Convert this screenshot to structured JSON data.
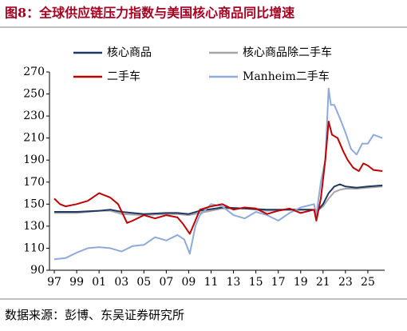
{
  "chart_data": {
    "type": "line",
    "title": "图8：全球供应链压力指数与美国核心商品同比增速",
    "source": "数据来源：彭博、东吴证券研究所",
    "xlim": [
      1996.57,
      2026.5
    ],
    "xticks": [
      {
        "value": 1997,
        "label": "97"
      },
      {
        "value": 1999,
        "label": "99"
      },
      {
        "value": 2001,
        "label": "01"
      },
      {
        "value": 2003,
        "label": "03"
      },
      {
        "value": 2005,
        "label": "05"
      },
      {
        "value": 2007,
        "label": "07"
      },
      {
        "value": 2009,
        "label": "09"
      },
      {
        "value": 2011,
        "label": "11"
      },
      {
        "value": 2013,
        "label": "13"
      },
      {
        "value": 2015,
        "label": "15"
      },
      {
        "value": 2017,
        "label": "17"
      },
      {
        "value": 2019,
        "label": "19"
      },
      {
        "value": 2021,
        "label": "21"
      },
      {
        "value": 2023,
        "label": "23"
      },
      {
        "value": 2025,
        "label": "25"
      }
    ],
    "ylim": [
      90,
      270
    ],
    "yticks": [
      90,
      110,
      130,
      150,
      170,
      190,
      210,
      230,
      250,
      270
    ],
    "series": [
      {
        "name": "核心商品",
        "color": "#1f3864",
        "x": [
          1997,
          1999,
          2001,
          2002,
          2003,
          2005,
          2007,
          2008,
          2009,
          2010,
          2012,
          2014,
          2016,
          2018,
          2020,
          2020.5,
          2021,
          2021.5,
          2022,
          2022.5,
          2023,
          2024,
          2025,
          2026.3
        ],
        "values": [
          143,
          143,
          144,
          145,
          143,
          141,
          142,
          142,
          141,
          144,
          147,
          146,
          145,
          145,
          145,
          144,
          150,
          160,
          166,
          168,
          166,
          165,
          166,
          167
        ]
      },
      {
        "name": "核心商品除二手车",
        "color": "#a6a6a6",
        "x": [
          1997,
          1999,
          2001,
          2002,
          2003,
          2005,
          2007,
          2008,
          2009,
          2010,
          2012,
          2014,
          2016,
          2018,
          2020,
          2020.5,
          2021,
          2021.5,
          2022,
          2022.5,
          2023,
          2024,
          2025,
          2026.3
        ],
        "values": [
          142,
          142,
          144,
          144,
          141,
          140,
          141,
          141,
          140,
          142,
          146,
          146,
          144,
          145,
          145,
          144,
          148,
          155,
          161,
          163,
          164,
          164,
          165,
          166
        ]
      },
      {
        "name": "二手车",
        "color": "#c00000",
        "x": [
          1997,
          1997.5,
          1998,
          1999,
          2000,
          2001,
          2002,
          2002.7,
          2003.5,
          2004,
          2005,
          2006,
          2007,
          2008,
          2008.5,
          2009.1,
          2009.6,
          2010,
          2011,
          2012,
          2013,
          2014,
          2015,
          2016,
          2017,
          2018,
          2019,
          2020.2,
          2020.4,
          2020.8,
          2021.2,
          2021.5,
          2021.8,
          2022.3,
          2022.8,
          2023.2,
          2023.7,
          2024.2,
          2024.6,
          2025,
          2025.5,
          2026.3
        ],
        "values": [
          155,
          150,
          148,
          150,
          153,
          160,
          156,
          150,
          133,
          135,
          140,
          137,
          140,
          138,
          132,
          123,
          135,
          145,
          148,
          150,
          145,
          147,
          146,
          141,
          144,
          146,
          142,
          145,
          135,
          155,
          190,
          225,
          213,
          210,
          198,
          190,
          183,
          180,
          187,
          185,
          181,
          180
        ]
      },
      {
        "name": "Manheim二手车",
        "color": "#8eaadb",
        "x": [
          1997,
          1998,
          1999,
          2000,
          2001,
          2002,
          2003,
          2004,
          2005,
          2006,
          2007,
          2008,
          2008.6,
          2009.1,
          2009.6,
          2010,
          2011,
          2012,
          2013,
          2014,
          2015,
          2016,
          2017,
          2018,
          2019,
          2020.2,
          2020.4,
          2020.8,
          2021.2,
          2021.5,
          2021.7,
          2022,
          2022.5,
          2023,
          2023.5,
          2024,
          2024.5,
          2025,
          2025.5,
          2026.3
        ],
        "values": [
          100,
          101,
          106,
          110,
          111,
          110,
          107,
          112,
          113,
          120,
          117,
          122,
          118,
          105,
          130,
          140,
          150,
          148,
          140,
          137,
          143,
          140,
          135,
          142,
          147,
          150,
          140,
          170,
          190,
          255,
          240,
          240,
          228,
          215,
          200,
          195,
          205,
          205,
          213,
          210
        ]
      }
    ]
  }
}
